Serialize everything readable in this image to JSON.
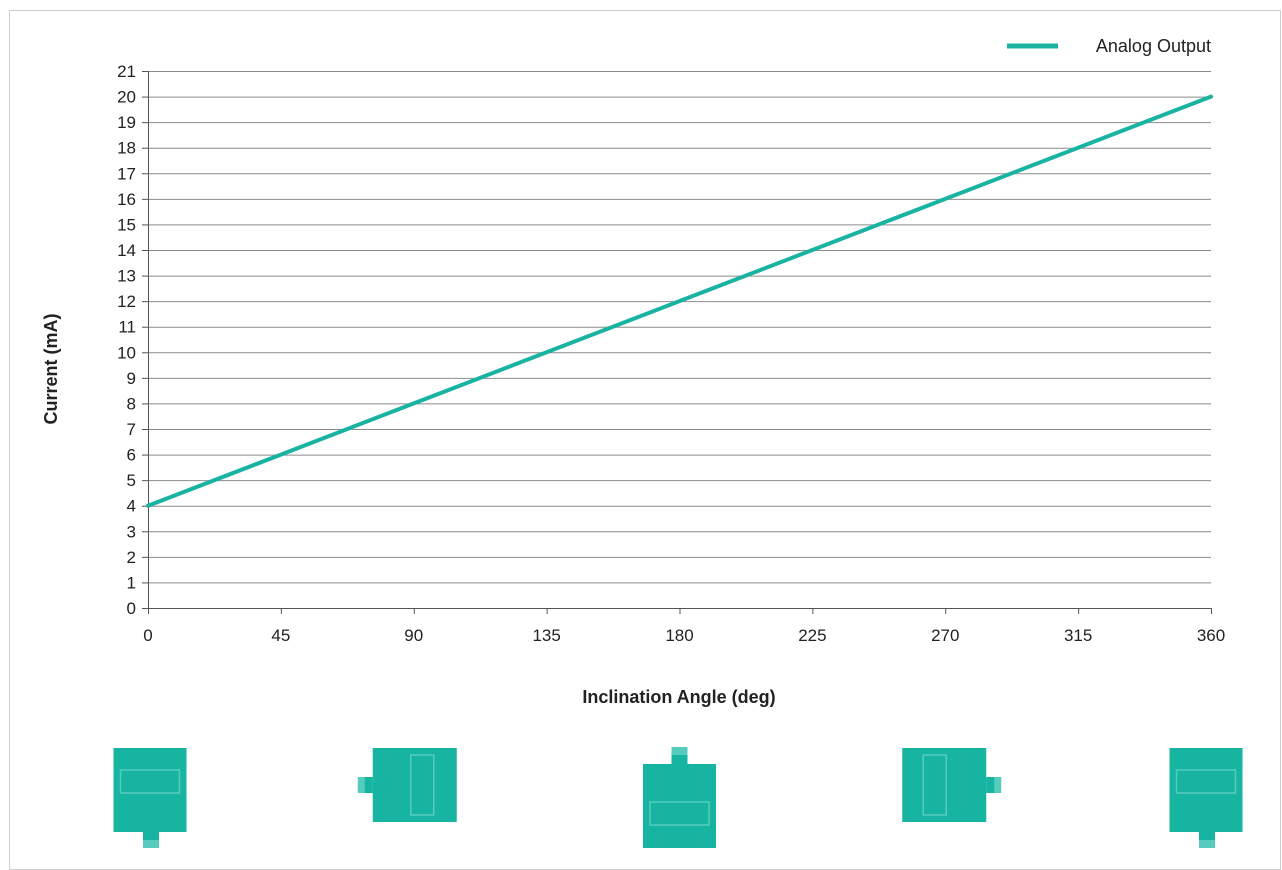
{
  "colors": {
    "series": "#18b3a1",
    "device": "#17b4a2",
    "device_detail": "#55ccbd",
    "grid": "#8c8c8c",
    "axis": "#555555"
  },
  "chart_data": {
    "type": "line",
    "title": "",
    "xlabel": "Inclination Angle (deg)",
    "ylabel": "Current (mA)",
    "xlim": [
      0,
      360
    ],
    "ylim": [
      0,
      21
    ],
    "xticks": [
      0,
      45,
      90,
      135,
      180,
      225,
      270,
      315,
      360
    ],
    "yticks": [
      0,
      1,
      2,
      3,
      4,
      5,
      6,
      7,
      8,
      9,
      10,
      11,
      12,
      13,
      14,
      15,
      16,
      17,
      18,
      19,
      20,
      21
    ],
    "grid": true,
    "legend_position": "top-right",
    "series": [
      {
        "name": "Analog Output",
        "x": [
          0,
          45,
          90,
          135,
          180,
          225,
          270,
          315,
          360
        ],
        "y": [
          4,
          6,
          8,
          10,
          12,
          14,
          16,
          18,
          20
        ]
      }
    ]
  },
  "orientation_icons": [
    {
      "angle": 0,
      "connector": "bottom"
    },
    {
      "angle": 90,
      "connector": "left"
    },
    {
      "angle": 180,
      "connector": "top"
    },
    {
      "angle": 270,
      "connector": "right"
    },
    {
      "angle": 360,
      "connector": "bottom"
    }
  ]
}
